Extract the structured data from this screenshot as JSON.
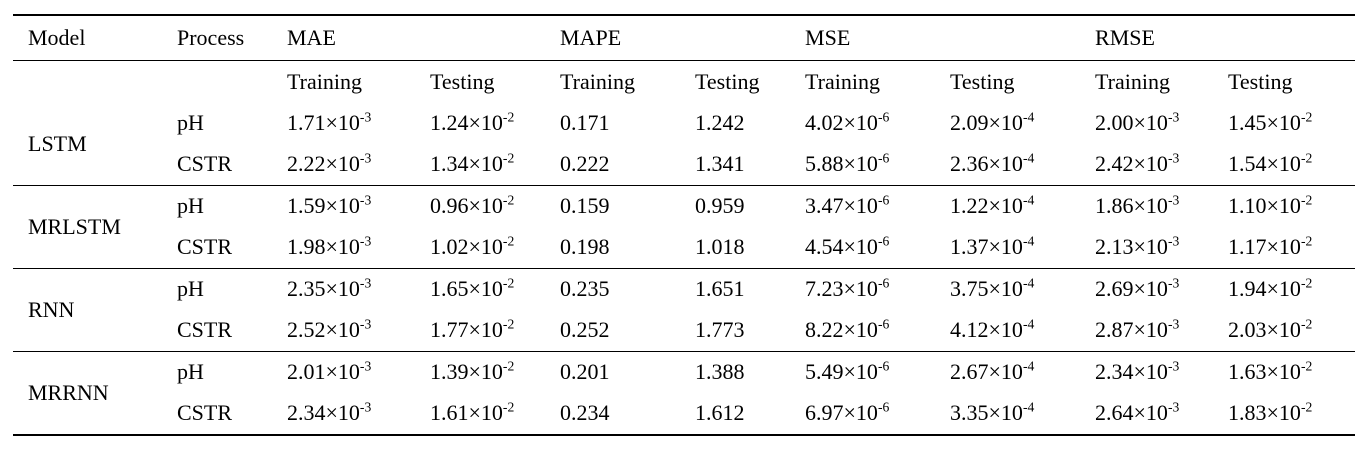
{
  "colors": {
    "text": "#000000",
    "background": "#ffffff",
    "rule": "#000000"
  },
  "table": {
    "header": {
      "model": "Model",
      "process": "Process",
      "metrics": [
        "MAE",
        "MAPE",
        "MSE",
        "RMSE"
      ],
      "subheaders": [
        "Training",
        "Testing"
      ]
    },
    "groups": [
      {
        "model": "LSTM",
        "rows": [
          {
            "process": "pH",
            "values": [
              "1.71×10^-3",
              "1.24×10^-2",
              "0.171",
              "1.242",
              "4.02×10^-6",
              "2.09×10^-4",
              "2.00×10^-3",
              "1.45×10^-2"
            ]
          },
          {
            "process": "CSTR",
            "values": [
              "2.22×10^-3",
              "1.34×10^-2",
              "0.222",
              "1.341",
              "5.88×10^-6",
              "2.36×10^-4",
              "2.42×10^-3",
              "1.54×10^-2"
            ]
          }
        ]
      },
      {
        "model": "MRLSTM",
        "rows": [
          {
            "process": "pH",
            "values": [
              "1.59×10^-3",
              "0.96×10^-2",
              "0.159",
              "0.959",
              "3.47×10^-6",
              "1.22×10^-4",
              "1.86×10^-3",
              "1.10×10^-2"
            ]
          },
          {
            "process": "CSTR",
            "values": [
              "1.98×10^-3",
              "1.02×10^-2",
              "0.198",
              "1.018",
              "4.54×10^-6",
              "1.37×10^-4",
              "2.13×10^-3",
              "1.17×10^-2"
            ]
          }
        ]
      },
      {
        "model": "RNN",
        "rows": [
          {
            "process": "pH",
            "values": [
              "2.35×10^-3",
              "1.65×10^-2",
              "0.235",
              "1.651",
              "7.23×10^-6",
              "3.75×10^-4",
              "2.69×10^-3",
              "1.94×10^-2"
            ]
          },
          {
            "process": "CSTR",
            "values": [
              "2.52×10^-3",
              "1.77×10^-2",
              "0.252",
              "1.773",
              "8.22×10^-6",
              "4.12×10^-4",
              "2.87×10^-3",
              "2.03×10^-2"
            ]
          }
        ]
      },
      {
        "model": "MRRNN",
        "rows": [
          {
            "process": "pH",
            "values": [
              "2.01×10^-3",
              "1.39×10^-2",
              "0.201",
              "1.388",
              "5.49×10^-6",
              "2.67×10^-4",
              "2.34×10^-3",
              "1.63×10^-2"
            ]
          },
          {
            "process": "CSTR",
            "values": [
              "2.34×10^-3",
              "1.61×10^-2",
              "0.234",
              "1.612",
              "6.97×10^-6",
              "3.35×10^-4",
              "2.64×10^-3",
              "1.83×10^-2"
            ]
          }
        ]
      }
    ]
  }
}
